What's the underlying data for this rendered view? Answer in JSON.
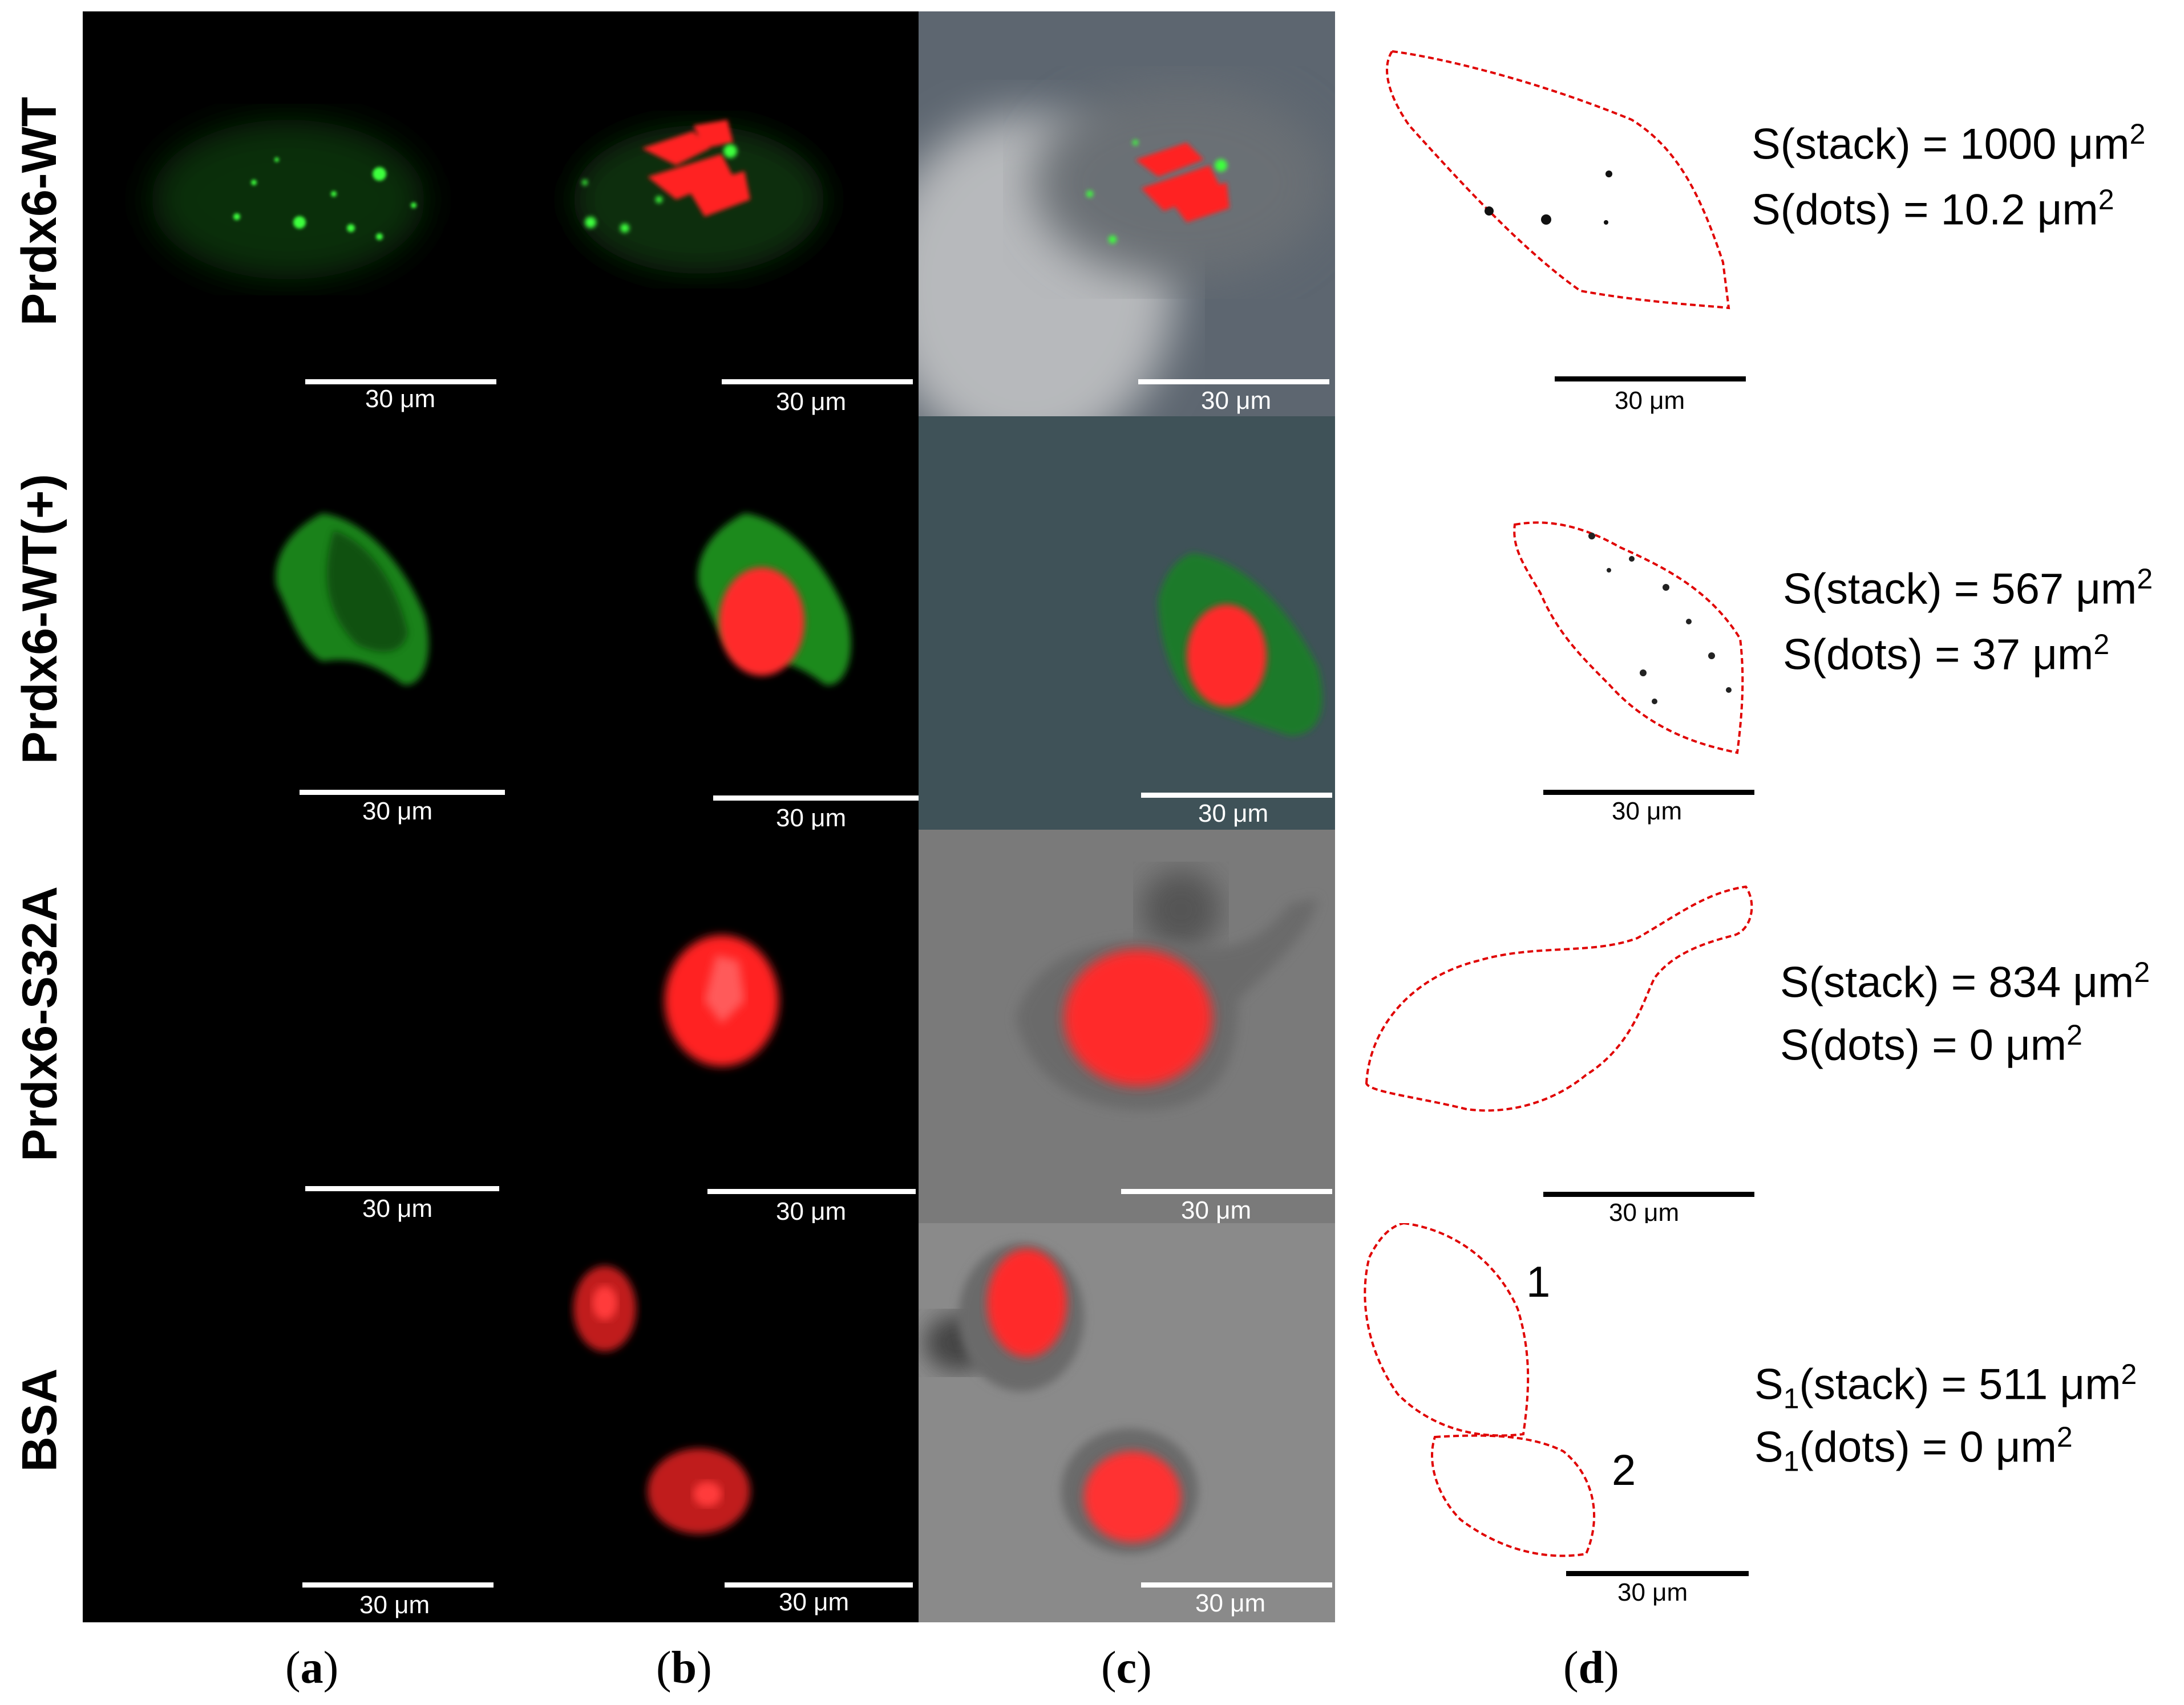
{
  "rows": [
    {
      "label": "Prdx6-WT"
    },
    {
      "label": "Prdx6-WT(+)"
    },
    {
      "label": "Prdx6-S32A"
    },
    {
      "label": "BSA"
    }
  ],
  "scale_bar_label": "30 μm",
  "columns": [
    "a",
    "b",
    "c",
    "d"
  ],
  "measurements": {
    "r0": {
      "stack": "S(stack) = 1000 μm",
      "dots": "S(dots) = 10.2 μm",
      "exp": "2"
    },
    "r1": {
      "stack": "S(stack) = 567 μm",
      "dots": "S(dots) = 37 μm",
      "exp": "2"
    },
    "r2": {
      "stack": "S(stack) = 834 μm",
      "dots": "S(dots) = 0 μm",
      "exp": "2"
    },
    "r3": {
      "S": "S",
      "sub": "1",
      "stack": "(stack) = 511 μm",
      "dots": "(dots) = 0 μm",
      "exp": "2"
    }
  },
  "cell_numbers": [
    "1",
    "2"
  ],
  "colors": {
    "green": "#2fd12f",
    "red": "#ff2a2a",
    "outline": "#e00000"
  }
}
